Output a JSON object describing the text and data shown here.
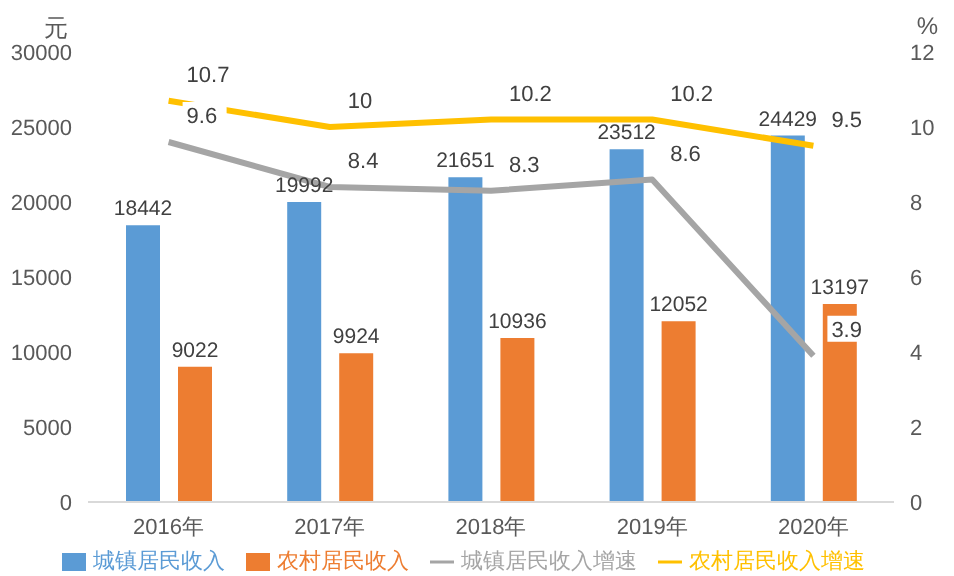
{
  "chart_data": {
    "type": "bar",
    "categories": [
      "2016年",
      "2017年",
      "2018年",
      "2019年",
      "2020年"
    ],
    "ylabel": "元",
    "y2label": "%",
    "series": [
      {
        "name": "城镇居民收入",
        "color": "#5b9bd5",
        "values": [
          18442,
          19992,
          21651,
          23512,
          24429
        ]
      },
      {
        "name": "农村居民收入",
        "color": "#ed7d31",
        "values": [
          9022,
          9924,
          10936,
          12052,
          13197
        ]
      },
      {
        "name": "城镇居民收入增速",
        "type": "line",
        "axis": "y2",
        "color": "#a5a5a5",
        "values": [
          9.6,
          8.4,
          8.3,
          8.6,
          3.9
        ]
      },
      {
        "name": "农村居民收入增速",
        "type": "line",
        "axis": "y2",
        "color": "#ffc000",
        "values": [
          10.7,
          10,
          10.2,
          10.2,
          9.5
        ]
      }
    ],
    "ylim": [
      0,
      30000
    ],
    "yticks": [
      0,
      5000,
      10000,
      15000,
      20000,
      25000,
      30000
    ],
    "y2lim": [
      0,
      12
    ],
    "y2ticks": [
      0,
      2,
      4,
      6,
      8,
      10,
      12
    ],
    "data_labels": true,
    "grid": false,
    "legend": "bottom",
    "marker": "none"
  }
}
